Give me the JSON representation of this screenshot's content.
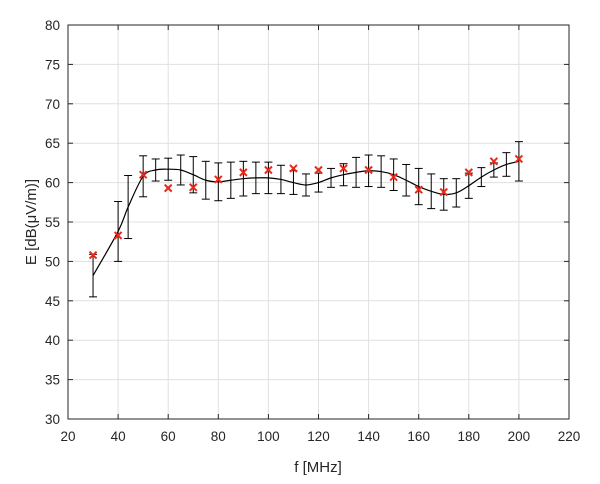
{
  "chart_data": {
    "type": "line",
    "xlabel": "f [MHz]",
    "ylabel": "E [dB(μV/m)]",
    "xlim": [
      20,
      220
    ],
    "ylim": [
      30,
      80
    ],
    "xticks": [
      20,
      40,
      60,
      80,
      100,
      120,
      140,
      160,
      180,
      200,
      220
    ],
    "yticks": [
      30,
      35,
      40,
      45,
      50,
      55,
      60,
      65,
      70,
      75,
      80
    ],
    "grid": true,
    "colors": {
      "fit_line": "#000000",
      "error_bars": "#000000",
      "measured_markers": "#e8291c",
      "grid": "#e0e0e0",
      "axes": "#262626"
    },
    "series": [
      {
        "kind": "line-with-errorbars",
        "x": [
          30,
          40,
          44,
          50,
          55,
          60,
          65,
          70,
          75,
          80,
          85,
          90,
          95,
          100,
          105,
          110,
          115,
          120,
          125,
          130,
          135,
          140,
          145,
          150,
          155,
          160,
          165,
          170,
          175,
          180,
          185,
          190,
          195,
          200
        ],
        "y": [
          48.2,
          53.8,
          56.9,
          60.8,
          61.6,
          61.7,
          61.6,
          61.0,
          60.3,
          60.1,
          60.3,
          60.5,
          60.6,
          60.6,
          60.4,
          60.0,
          59.7,
          60.0,
          60.6,
          61.0,
          61.3,
          61.5,
          61.4,
          61.0,
          60.3,
          59.5,
          58.9,
          58.5,
          58.7,
          59.6,
          60.7,
          61.6,
          62.3,
          62.7
        ],
        "err": [
          2.7,
          3.8,
          4.0,
          2.6,
          1.4,
          1.4,
          1.9,
          2.3,
          2.4,
          2.4,
          2.3,
          2.2,
          2.0,
          2.0,
          1.8,
          1.5,
          1.4,
          1.2,
          1.2,
          1.4,
          1.9,
          2.0,
          2.0,
          2.0,
          2.0,
          2.3,
          2.2,
          2.0,
          1.8,
          1.6,
          1.2,
          0.9,
          1.5,
          2.5
        ]
      },
      {
        "kind": "markers",
        "marker": "x",
        "x": [
          30,
          40,
          50,
          60,
          70,
          80,
          90,
          100,
          110,
          120,
          130,
          140,
          150,
          160,
          170,
          180,
          190,
          200
        ],
        "y": [
          50.8,
          53.3,
          61.0,
          59.3,
          59.4,
          60.4,
          61.3,
          61.6,
          61.8,
          61.6,
          61.8,
          61.6,
          60.7,
          59.1,
          58.8,
          61.3,
          62.7,
          63.0
        ]
      }
    ]
  }
}
